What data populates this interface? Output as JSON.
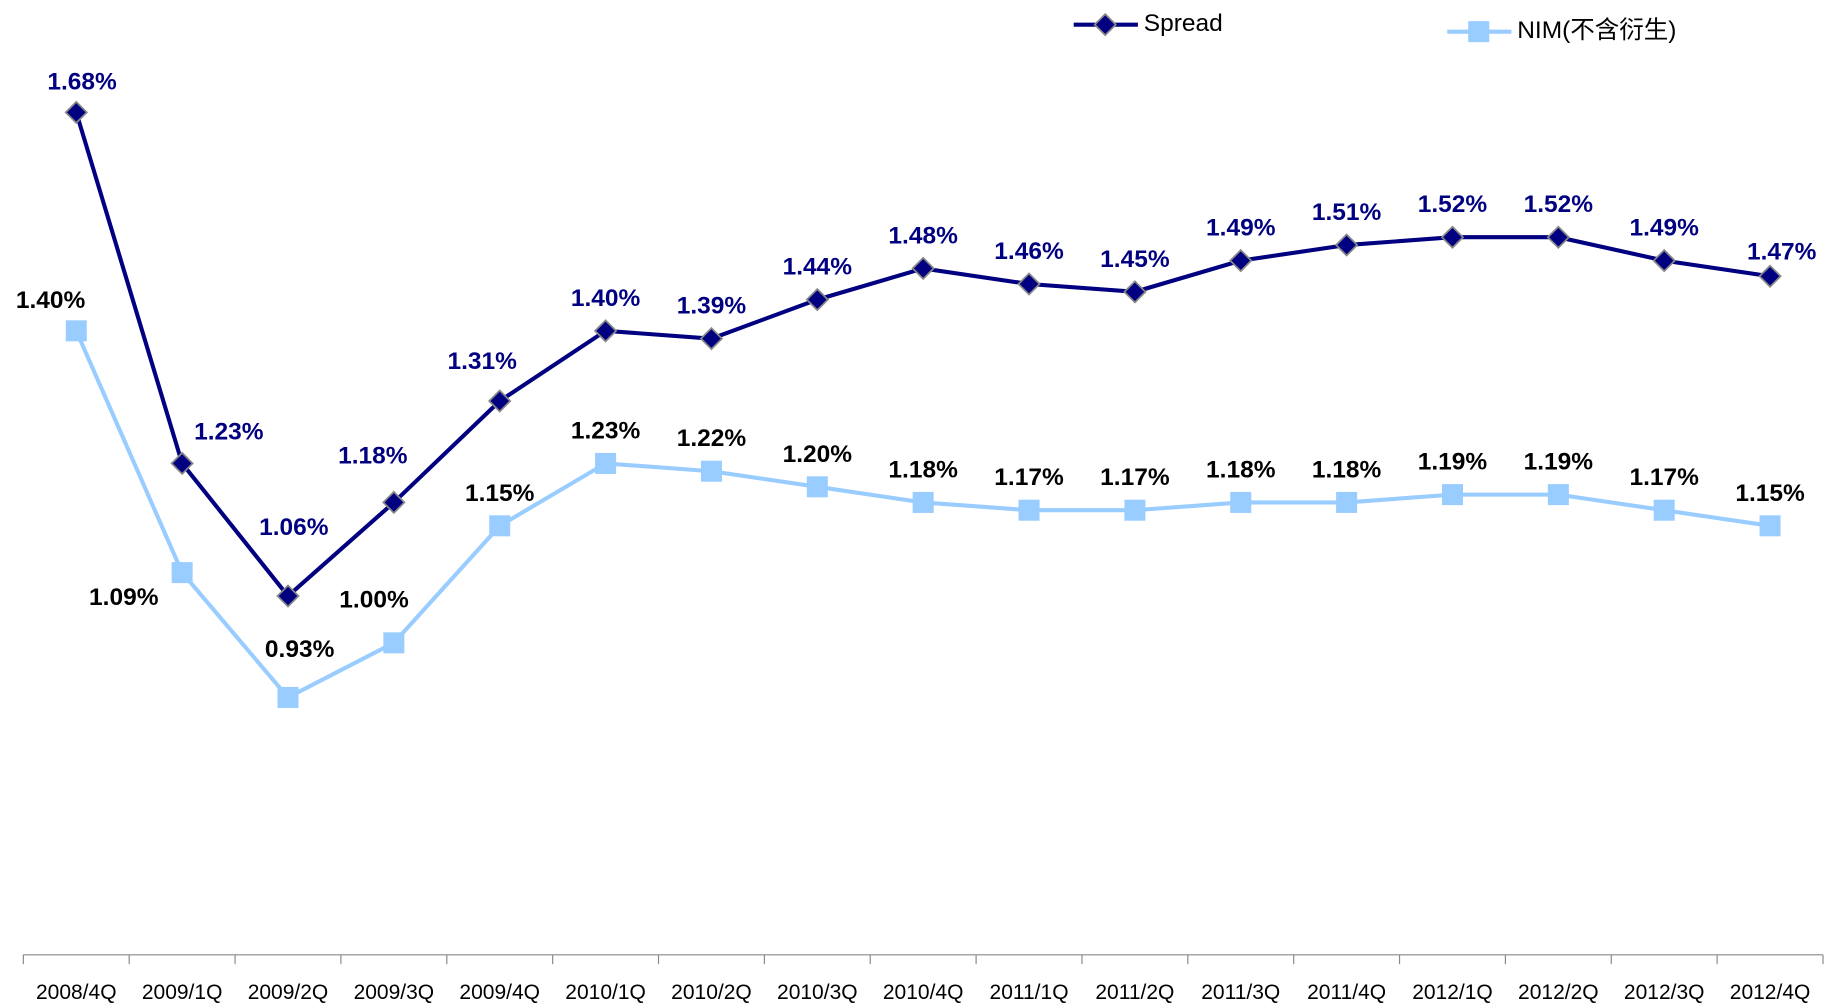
{
  "chart_data": {
    "type": "line",
    "categories": [
      "2008/4Q",
      "2009/1Q",
      "2009/2Q",
      "2009/3Q",
      "2009/4Q",
      "2010/1Q",
      "2010/2Q",
      "2010/3Q",
      "2010/4Q",
      "2011/1Q",
      "2011/2Q",
      "2011/3Q",
      "2011/4Q",
      "2012/1Q",
      "2012/2Q",
      "2012/3Q",
      "2012/4Q"
    ],
    "series": [
      {
        "name": "Spread",
        "color": "#000080",
        "marker": "diamond",
        "values": [
          1.68,
          1.23,
          1.06,
          1.18,
          1.31,
          1.4,
          1.39,
          1.44,
          1.48,
          1.46,
          1.45,
          1.49,
          1.51,
          1.52,
          1.52,
          1.49,
          1.47
        ],
        "value_labels": [
          "1.68%",
          "1.23%",
          "1.06%",
          "1.18%",
          "1.31%",
          "1.40%",
          "1.39%",
          "1.44%",
          "1.48%",
          "1.46%",
          "1.45%",
          "1.49%",
          "1.51%",
          "1.52%",
          "1.52%",
          "1.49%",
          "1.47%"
        ]
      },
      {
        "name": "NIM(不含衍生)",
        "color": "#99ccff",
        "marker": "square",
        "values": [
          1.4,
          1.09,
          0.93,
          1.0,
          1.15,
          1.23,
          1.22,
          1.2,
          1.18,
          1.17,
          1.17,
          1.18,
          1.18,
          1.19,
          1.19,
          1.17,
          1.15
        ],
        "value_labels": [
          "1.40%",
          "1.09%",
          "0.93%",
          "1.00%",
          "1.15%",
          "1.23%",
          "1.22%",
          "1.20%",
          "1.18%",
          "1.17%",
          "1.17%",
          "1.18%",
          "1.18%",
          "1.19%",
          "1.19%",
          "1.17%",
          "1.15%"
        ]
      }
    ],
    "ylim": [
      0.6,
      1.8
    ]
  }
}
